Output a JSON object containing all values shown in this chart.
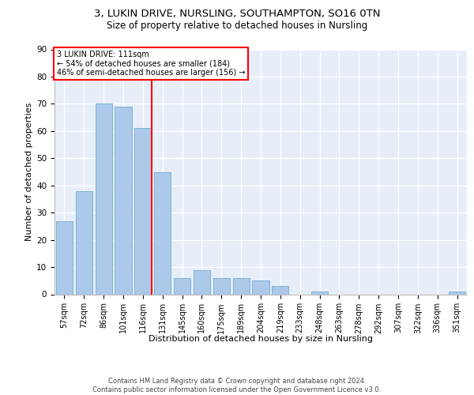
{
  "title1": "3, LUKIN DRIVE, NURSLING, SOUTHAMPTON, SO16 0TN",
  "title2": "Size of property relative to detached houses in Nursling",
  "xlabel": "Distribution of detached houses by size in Nursling",
  "ylabel": "Number of detached properties",
  "categories": [
    "57sqm",
    "72sqm",
    "86sqm",
    "101sqm",
    "116sqm",
    "131sqm",
    "145sqm",
    "160sqm",
    "175sqm",
    "189sqm",
    "204sqm",
    "219sqm",
    "233sqm",
    "248sqm",
    "263sqm",
    "278sqm",
    "292sqm",
    "307sqm",
    "322sqm",
    "336sqm",
    "351sqm"
  ],
  "values": [
    27,
    38,
    70,
    69,
    61,
    45,
    6,
    9,
    6,
    6,
    5,
    3,
    0,
    1,
    0,
    0,
    0,
    0,
    0,
    0,
    1
  ],
  "bar_color": "#adc9ea",
  "bar_edge_color": "#6aaad4",
  "vline_color": "red",
  "vline_x": 4.43,
  "annotation_line1": "3 LUKIN DRIVE: 111sqm",
  "annotation_line2": "← 54% of detached houses are smaller (184)",
  "annotation_line3": "46% of semi-detached houses are larger (156) →",
  "ylim_min": 0,
  "ylim_max": 90,
  "yticks": [
    0,
    10,
    20,
    30,
    40,
    50,
    60,
    70,
    80,
    90
  ],
  "bg_color": "#e8eef8",
  "footer_line1": "Contains HM Land Registry data © Crown copyright and database right 2024.",
  "footer_line2": "Contains public sector information licensed under the Open Government Licence v3.0."
}
